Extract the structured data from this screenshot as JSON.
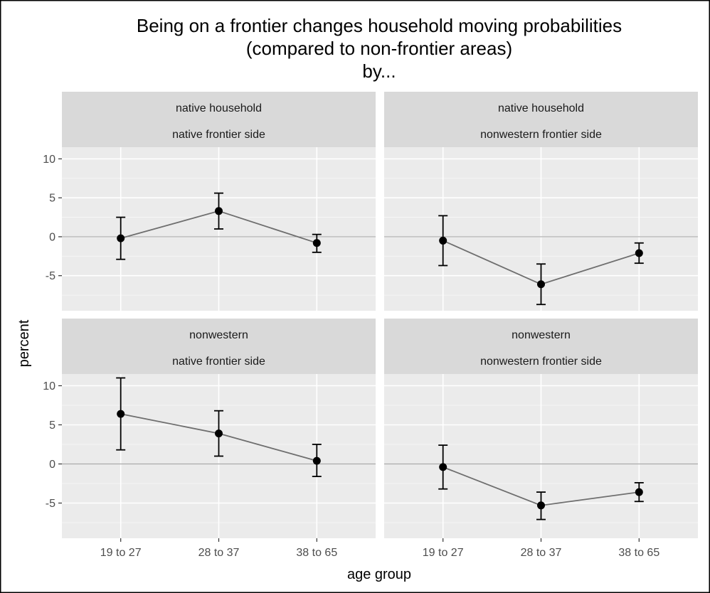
{
  "chart_data": {
    "type": "line",
    "title": [
      "Being on a frontier changes household moving probabilities",
      "(compared to non-frontier areas)",
      "by..."
    ],
    "xlabel": "age group",
    "ylabel": "percent",
    "categories": [
      "19 to 27",
      "28 to 37",
      "38 to 65"
    ],
    "ylim": [
      -9.5,
      11.5
    ],
    "yticks": [
      -5,
      0,
      5,
      10
    ],
    "grid": true,
    "reference_line": 0,
    "panels": [
      {
        "strip": [
          "native household",
          "native frontier side"
        ],
        "values": [
          -0.2,
          3.3,
          -0.8
        ],
        "lower": [
          -2.9,
          1.0,
          -2.0
        ],
        "upper": [
          2.5,
          5.6,
          0.3
        ]
      },
      {
        "strip": [
          "native household",
          "nonwestern frontier side"
        ],
        "values": [
          -0.5,
          -6.1,
          -2.1
        ],
        "lower": [
          -3.7,
          -8.7,
          -3.4
        ],
        "upper": [
          2.7,
          -3.5,
          -0.8
        ]
      },
      {
        "strip": [
          "nonwestern",
          "native frontier side"
        ],
        "values": [
          6.4,
          3.9,
          0.4
        ],
        "lower": [
          1.8,
          1.0,
          -1.6
        ],
        "upper": [
          11.0,
          6.8,
          2.5
        ]
      },
      {
        "strip": [
          "nonwestern",
          "nonwestern frontier side"
        ],
        "values": [
          -0.4,
          -5.3,
          -3.6
        ],
        "lower": [
          -3.2,
          -7.1,
          -4.8
        ],
        "upper": [
          2.4,
          -3.6,
          -2.4
        ]
      }
    ]
  }
}
